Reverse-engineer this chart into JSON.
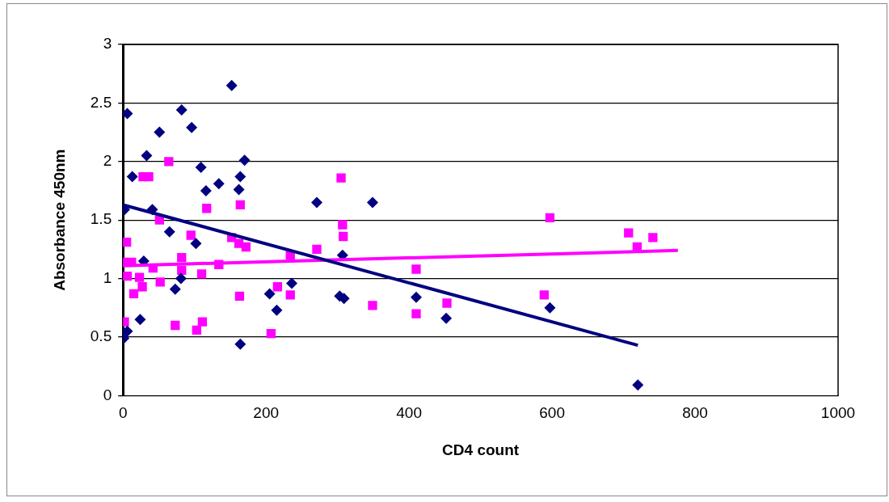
{
  "chart_data": {
    "type": "scatter",
    "xlabel": "CD4 count",
    "ylabel": "Absorbance 450nm",
    "xlim": [
      0,
      1000
    ],
    "xticks": [
      0,
      200,
      400,
      600,
      800,
      1000
    ],
    "ylim": [
      0,
      3
    ],
    "yticks": [
      0,
      0.5,
      1,
      1.5,
      2,
      2.5,
      3
    ],
    "grid": "y",
    "legend": false,
    "series": [
      {
        "type": "scatter",
        "marker": "diamond",
        "color": "#000080",
        "x": [
          1,
          6,
          2,
          6,
          13,
          24,
          29,
          33,
          41,
          51,
          65,
          73,
          81,
          82,
          96,
          102,
          109,
          116,
          134,
          152,
          162,
          164,
          170,
          164,
          205,
          215,
          236,
          271,
          303,
          307,
          309,
          349,
          410,
          452,
          597,
          720
        ],
        "values": [
          0.49,
          0.55,
          1.59,
          2.41,
          1.87,
          0.65,
          1.15,
          2.05,
          1.59,
          2.25,
          1.4,
          0.91,
          1.0,
          2.44,
          2.29,
          1.3,
          1.95,
          1.75,
          1.81,
          2.65,
          1.76,
          1.87,
          2.01,
          0.44,
          0.87,
          0.73,
          0.96,
          1.65,
          0.85,
          1.2,
          0.83,
          1.65,
          0.84,
          0.66,
          0.75,
          0.09
        ]
      },
      {
        "type": "scatter",
        "marker": "square",
        "color": "#ff00ff",
        "x": [
          5,
          1,
          12,
          6,
          23,
          27,
          15,
          42,
          52,
          82,
          82,
          110,
          134,
          2,
          73,
          103,
          111,
          163,
          216,
          207,
          28,
          36,
          64,
          117,
          164,
          51,
          95,
          152,
          162,
          172,
          305,
          307,
          308,
          271,
          234,
          234,
          349,
          410,
          410,
          453,
          597,
          589,
          707,
          719,
          741
        ],
        "values": [
          1.31,
          1.14,
          1.14,
          1.02,
          1.01,
          0.93,
          0.87,
          1.09,
          0.97,
          1.18,
          1.07,
          1.04,
          1.12,
          0.63,
          0.6,
          0.56,
          0.63,
          0.85,
          0.93,
          0.53,
          1.87,
          1.87,
          2.0,
          1.6,
          1.63,
          1.5,
          1.37,
          1.35,
          1.3,
          1.27,
          1.86,
          1.46,
          1.36,
          1.25,
          1.2,
          0.86,
          0.77,
          1.08,
          0.7,
          0.79,
          1.52,
          0.86,
          1.39,
          1.27,
          1.35
        ]
      },
      {
        "type": "line",
        "marker": "none",
        "color": "#000080",
        "x": [
          0,
          720
        ],
        "values": [
          1.63,
          0.43
        ]
      },
      {
        "type": "line",
        "marker": "none",
        "color": "#ff00ff",
        "x": [
          0,
          776
        ],
        "values": [
          1.11,
          1.24
        ]
      }
    ]
  }
}
